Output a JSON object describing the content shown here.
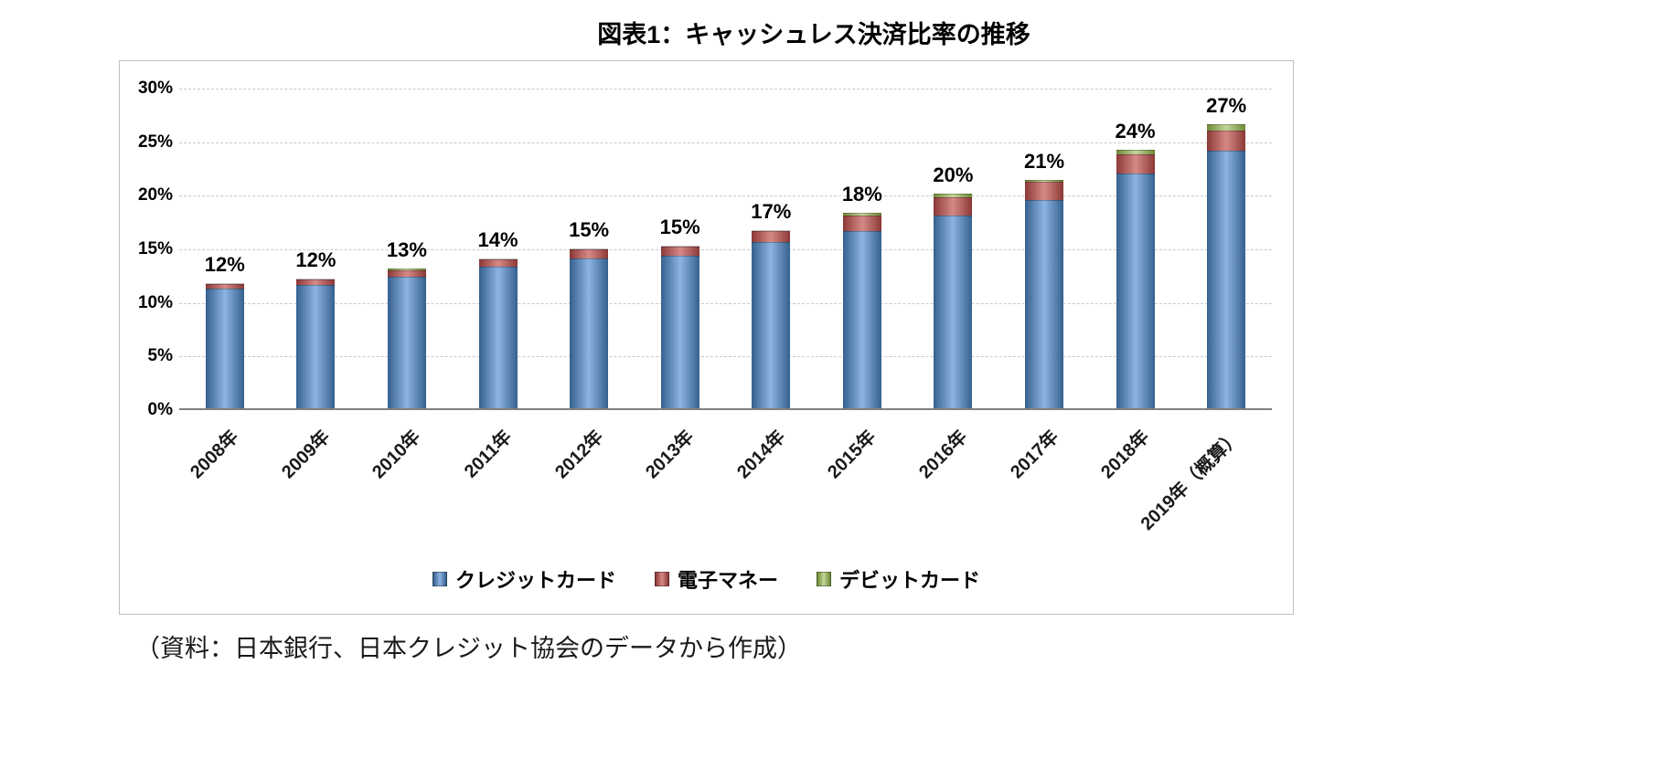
{
  "source_note": "（資料：日本銀行、日本クレジット協会のデータから作成）",
  "chart_data": {
    "type": "bar",
    "stacked": true,
    "title": "図表1：キャッシュレス決済比率の推移",
    "categories": [
      "2008年",
      "2009年",
      "2010年",
      "2011年",
      "2012年",
      "2013年",
      "2014年",
      "2015年",
      "2016年",
      "2017年",
      "2018年",
      "2019年（概算）"
    ],
    "series": [
      {
        "name": "クレジットカード",
        "color": "#4f81bd",
        "edge": "#35618f",
        "light": "#8db4e2",
        "values": [
          11.2,
          11.5,
          12.3,
          13.2,
          14.0,
          14.2,
          15.5,
          16.5,
          18.0,
          19.4,
          21.9,
          24.0
        ]
      },
      {
        "name": "電子マネー",
        "color": "#c0504d",
        "edge": "#8c3836",
        "light": "#d58a88",
        "values": [
          0.4,
          0.5,
          0.6,
          0.7,
          0.8,
          0.9,
          1.0,
          1.5,
          1.7,
          1.7,
          1.8,
          1.9
        ]
      },
      {
        "name": "デビットカード",
        "color": "#9bbb59",
        "edge": "#6d8a35",
        "light": "#c3d69b",
        "values": [
          0.1,
          0.1,
          0.1,
          0.1,
          0.1,
          0.1,
          0.1,
          0.2,
          0.3,
          0.2,
          0.4,
          0.6
        ]
      }
    ],
    "total_labels": [
      "12%",
      "12%",
      "13%",
      "14%",
      "15%",
      "15%",
      "17%",
      "18%",
      "20%",
      "21%",
      "24%",
      "27%"
    ],
    "ylim": [
      0,
      30
    ],
    "y_ticks": [
      "30%",
      "25%",
      "20%",
      "15%",
      "10%",
      "5%",
      "0%"
    ],
    "grid": "dashed horizontal gridlines at 5% intervals",
    "legend_position": "bottom center"
  }
}
